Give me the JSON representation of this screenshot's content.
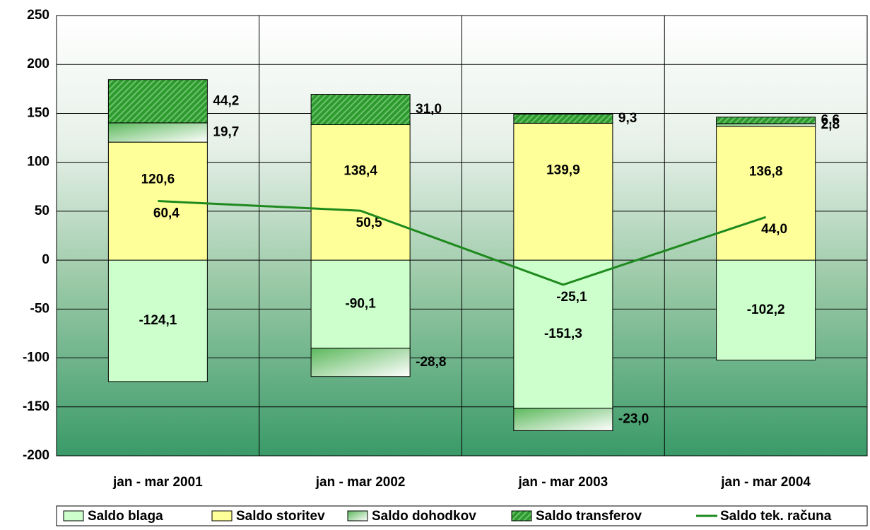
{
  "chart_data": {
    "type": "stacked_bar_line",
    "categories": [
      "jan - mar 2001",
      "jan - mar 2002",
      "jan - mar 2003",
      "jan - mar 2004"
    ],
    "series": [
      {
        "name": "Saldo blaga",
        "type": "bar",
        "color": "#ccffcc",
        "values": [
          -124.1,
          -90.1,
          -151.3,
          -102.2
        ],
        "value_labels": [
          "-124,1",
          "-90,1",
          "-151,3",
          "-102,2"
        ]
      },
      {
        "name": "Saldo storitev",
        "type": "bar",
        "color": "#ffff99",
        "values": [
          120.6,
          138.4,
          139.9,
          136.8
        ],
        "value_labels": [
          "120,6",
          "138,4",
          "139,9",
          "136,8"
        ]
      },
      {
        "name": "Saldo dohodkov",
        "type": "bar",
        "color": "#5cb85c",
        "pattern": "gradient",
        "values": [
          19.7,
          -28.8,
          -23.0,
          2.8
        ],
        "value_labels": [
          "19,7",
          "-28,8",
          "-23,0",
          "2,8"
        ]
      },
      {
        "name": "Saldo transferov",
        "type": "bar",
        "color": "#2e9a2e",
        "pattern": "hatch",
        "values": [
          44.2,
          31.0,
          9.3,
          6.6
        ],
        "value_labels": [
          "44,2",
          "31,0",
          "9,3",
          "6,6"
        ]
      },
      {
        "name": "Saldo tek. računa",
        "type": "line",
        "color": "#1e8a1e",
        "values": [
          60.4,
          50.5,
          -25.1,
          44.0
        ],
        "value_labels": [
          "60,4",
          "50,5",
          "-25,1",
          "44,0"
        ]
      }
    ],
    "ylim": [
      -200,
      250
    ],
    "yticks": [
      -200,
      -150,
      -100,
      -50,
      0,
      50,
      100,
      150,
      200,
      250
    ],
    "grid": true
  }
}
